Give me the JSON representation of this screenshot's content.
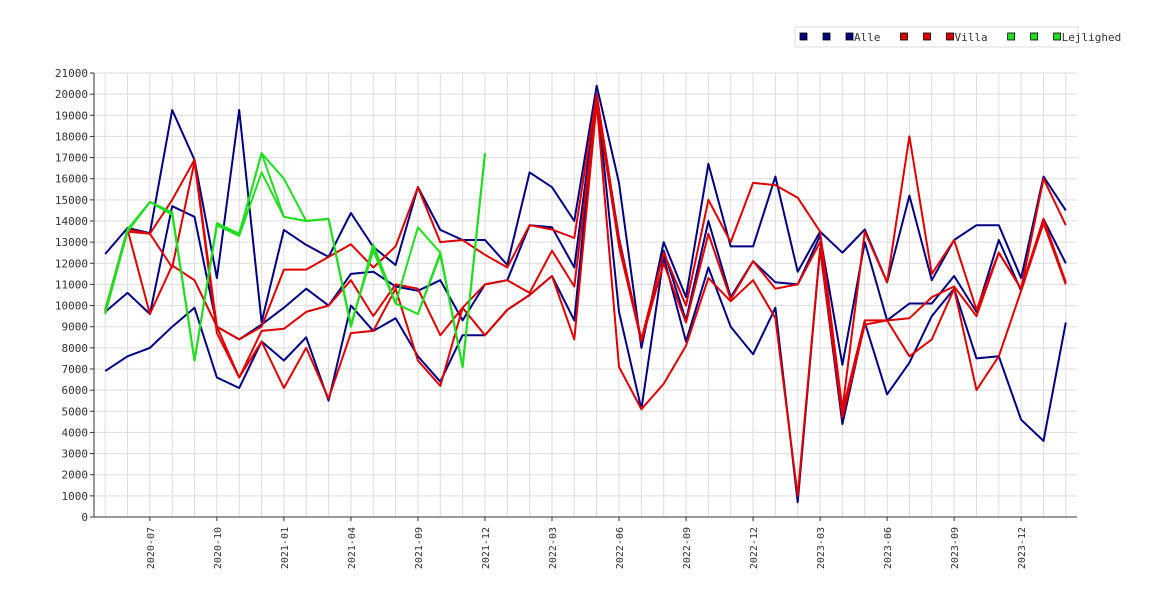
{
  "chart_data": {
    "type": "line",
    "categories": [
      null,
      null,
      "2020-07",
      null,
      null,
      "2020-10",
      null,
      null,
      "2021-01",
      null,
      null,
      "2021-04",
      null,
      null,
      "2021-09",
      null,
      null,
      "2021-12",
      null,
      null,
      "2022-03",
      null,
      null,
      "2022-06",
      null,
      null,
      "2022-09",
      null,
      null,
      "2022-12",
      null,
      null,
      "2023-03",
      null,
      null,
      "2023-06",
      null,
      null,
      "2023-09",
      null,
      null,
      "2023-12",
      null,
      null
    ],
    "series": [
      {
        "name": "Alle",
        "color": "#000080",
        "values": [
          [
            12440,
            13670,
            13430,
            19250,
            16890,
            11300,
            19250,
            9220,
            13580,
            12870,
            12300,
            14380,
            12770,
            11920,
            15610,
            13580,
            13100,
            13100,
            11920,
            16300,
            15600,
            14000,
            20400,
            15800,
            8000,
            13000,
            10400,
            16700,
            12800,
            12800,
            16100,
            11600,
            13500,
            12500,
            13600,
            11100,
            15200,
            11200,
            13100,
            13800,
            13800,
            11300,
            16100,
            14500
          ],
          [
            9700,
            10600,
            9600,
            14700,
            14200,
            9000,
            8400,
            9100,
            9900,
            10800,
            10000,
            11500,
            11600,
            10900,
            10700,
            11200,
            9300,
            11000,
            11200,
            13800,
            13700,
            11800,
            19900,
            13200,
            8300,
            12600,
            9300,
            14000,
            10400,
            12100,
            11100,
            11000,
            13300,
            7200,
            13000,
            9300,
            10100,
            10100,
            11400,
            9700,
            13100,
            10700,
            14100,
            12000
          ],
          [
            6900,
            7600,
            8000,
            9000,
            9900,
            6600,
            6100,
            8300,
            7400,
            8500,
            5500,
            10000,
            8800,
            9400,
            7600,
            6400,
            8600,
            8600,
            9800,
            10500,
            11400,
            9300,
            20000,
            9700,
            5100,
            12300,
            8300,
            11800,
            9000,
            7700,
            9900,
            700,
            12700,
            4400,
            9200,
            5800,
            7300,
            9500,
            10800,
            7500,
            7600,
            4600,
            3600,
            9200
          ]
        ]
      },
      {
        "name": "Villa",
        "color": "#dd0000",
        "values": [
          [
            9800,
            13600,
            13400,
            15000,
            16900,
            9000,
            8400,
            9000,
            11700,
            11700,
            12300,
            12900,
            11800,
            12800,
            15600,
            13000,
            13100,
            12400,
            11800,
            13800,
            13600,
            13200,
            20000,
            13100,
            8400,
            12500,
            10000,
            15000,
            13000,
            15800,
            15700,
            15100,
            13500,
            5100,
            13500,
            11100,
            18000,
            11500,
            13100,
            9800,
            12500,
            10800,
            16000,
            13800
          ],
          [
            9800,
            13600,
            9600,
            11900,
            11200,
            9000,
            6600,
            8800,
            8900,
            9700,
            10000,
            11200,
            9500,
            11000,
            10800,
            8600,
            9900,
            11000,
            11200,
            10600,
            12600,
            10900,
            19600,
            12800,
            8300,
            12000,
            9200,
            13400,
            10300,
            12100,
            10800,
            11000,
            13000,
            5000,
            9300,
            9300,
            9400,
            10400,
            10900,
            9500,
            12500,
            10800,
            14100,
            11100
          ],
          [
            9700,
            13500,
            13400,
            11800,
            16800,
            8700,
            6600,
            8300,
            6100,
            8000,
            5600,
            8700,
            8800,
            10800,
            7400,
            6200,
            9900,
            8600,
            9800,
            10500,
            11400,
            8400,
            19600,
            7100,
            5100,
            6300,
            8100,
            11300,
            10200,
            11200,
            9400,
            1000,
            12700,
            4700,
            9100,
            9300,
            7600,
            8400,
            10800,
            6000,
            7600,
            10700,
            13900,
            11000
          ]
        ]
      },
      {
        "name": "Lejlighed",
        "color": "#22dd22",
        "values": [
          [
            9600,
            13600,
            14900,
            14400,
            7400,
            13900,
            13400,
            17200,
            16000,
            14000,
            14100,
            9000,
            12900,
            10100,
            13700,
            12500,
            7100,
            17200,
            null,
            null,
            null,
            null,
            null,
            null,
            null,
            null,
            null,
            null,
            null,
            null,
            null,
            null,
            null,
            null,
            null,
            null,
            null,
            null,
            null,
            null,
            null,
            null,
            null,
            null
          ],
          [
            9800,
            13600,
            14900,
            14400,
            7400,
            13800,
            13300,
            16300,
            14200,
            14000,
            14100,
            9000,
            12800,
            10100,
            9600,
            12500,
            7100,
            17200,
            null,
            null,
            null,
            null,
            null,
            null,
            null,
            null,
            null,
            null,
            null,
            null,
            null,
            null,
            null,
            null,
            null,
            null,
            null,
            null,
            null,
            null,
            null,
            null,
            null,
            null
          ],
          [
            9600,
            13500,
            14900,
            14300,
            7400,
            13800,
            13400,
            17200,
            14200,
            14000,
            14100,
            9100,
            12600,
            10100,
            9600,
            12400,
            7100,
            17200,
            null,
            null,
            null,
            null,
            null,
            null,
            null,
            null,
            null,
            null,
            null,
            null,
            null,
            null,
            null,
            null,
            null,
            null,
            null,
            null,
            null,
            null,
            null,
            null,
            null,
            null
          ]
        ]
      }
    ],
    "ylim": [
      0,
      21000
    ],
    "yticks": [
      0,
      1000,
      2000,
      3000,
      4000,
      5000,
      6000,
      7000,
      8000,
      9000,
      10000,
      11000,
      12000,
      13000,
      14000,
      15000,
      16000,
      17000,
      18000,
      19000,
      20000,
      21000
    ],
    "grid": true,
    "legend": "top-right"
  }
}
